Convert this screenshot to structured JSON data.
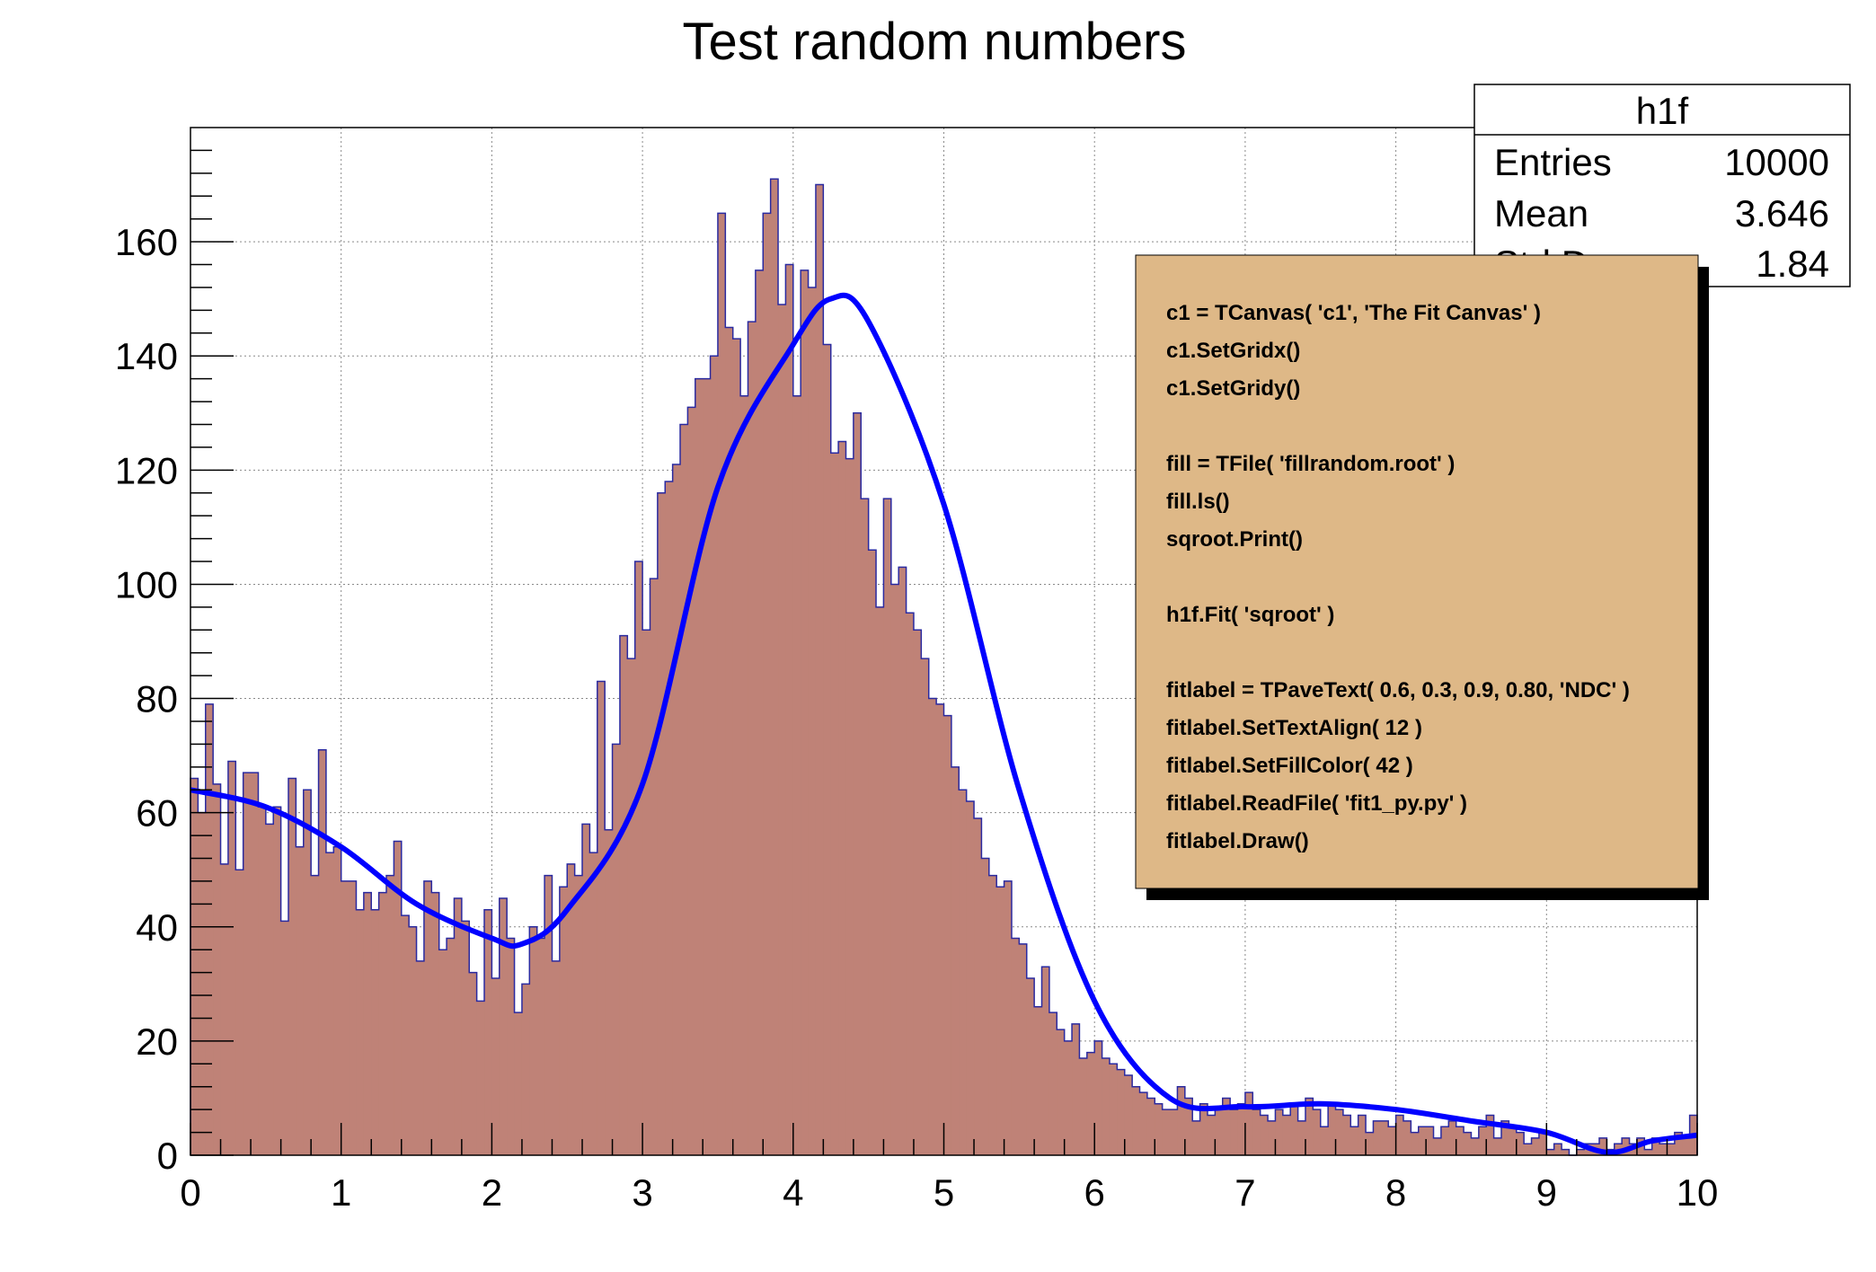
{
  "chart_data": {
    "type": "bar",
    "title": "Test random numbers",
    "xlabel": "",
    "ylabel": "",
    "xlim": [
      0,
      10
    ],
    "ylim": [
      0,
      180
    ],
    "grid": true,
    "x_ticks": [
      0,
      1,
      2,
      3,
      4,
      5,
      6,
      7,
      8,
      9,
      10
    ],
    "x_tick_labels": [
      "0",
      "1",
      "2",
      "3",
      "4",
      "5",
      "6",
      "7",
      "8",
      "9",
      "10"
    ],
    "y_ticks": [
      0,
      20,
      40,
      60,
      80,
      100,
      120,
      140,
      160
    ],
    "y_tick_labels": [
      "0",
      "20",
      "40",
      "60",
      "80",
      "100",
      "120",
      "140",
      "160"
    ],
    "bin_width": 0.05,
    "histogram_values": [
      66,
      60,
      79,
      65,
      51,
      69,
      50,
      67,
      67,
      61,
      58,
      61,
      41,
      66,
      54,
      64,
      49,
      71,
      53,
      54,
      48,
      48,
      43,
      46,
      43,
      46,
      49,
      55,
      42,
      40,
      34,
      48,
      46,
      36,
      38,
      45,
      41,
      32,
      27,
      43,
      31,
      45,
      38,
      25,
      30,
      40,
      38,
      49,
      34,
      47,
      51,
      49,
      58,
      53,
      83,
      57,
      72,
      91,
      87,
      104,
      92,
      101,
      116,
      118,
      121,
      128,
      131,
      136,
      136,
      140,
      165,
      145,
      143,
      133,
      146,
      155,
      165,
      171,
      149,
      156,
      133,
      155,
      152,
      170,
      142,
      123,
      125,
      122,
      130,
      115,
      106,
      96,
      115,
      100,
      103,
      95,
      92,
      87,
      80,
      79,
      77,
      68,
      64,
      62,
      59,
      52,
      49,
      47,
      48,
      38,
      37,
      31,
      26,
      33,
      25,
      22,
      20,
      23,
      17,
      18,
      20,
      17,
      16,
      15,
      14,
      12,
      11,
      10,
      9,
      8,
      8,
      12,
      10,
      6,
      9,
      7,
      8,
      10,
      8,
      9,
      11,
      8,
      7,
      6,
      8,
      7,
      9,
      6,
      10,
      8,
      5,
      9,
      8,
      7,
      5,
      7,
      4,
      6,
      6,
      5,
      7,
      6,
      4,
      5,
      5,
      3,
      5,
      6,
      5,
      4,
      3,
      5,
      7,
      3,
      6,
      5,
      4,
      2,
      3,
      4,
      1,
      2,
      1,
      0,
      1,
      2,
      2,
      3,
      1,
      2,
      3,
      2,
      3,
      1,
      3,
      2,
      2,
      4,
      3,
      7
    ],
    "fit_function": {
      "name": "sqroot",
      "color": "#0000ff",
      "x": [
        0,
        0.5,
        1,
        1.5,
        2,
        2.2,
        2.5,
        3,
        3.5,
        4,
        4.25,
        4.5,
        5,
        5.5,
        6,
        6.5,
        7,
        7.5,
        8,
        8.5,
        9,
        9.4,
        9.7,
        10
      ],
      "y": [
        64,
        61,
        54,
        44,
        38,
        37,
        43,
        65,
        117,
        142,
        150,
        146,
        114,
        64,
        27,
        10,
        8.5,
        9,
        8,
        6,
        4,
        0.5,
        2.5,
        3.5
      ]
    },
    "bar_fill_color": "#bf8277",
    "bar_line_color": "#2a2aa0",
    "stats_box": {
      "title": "h1f",
      "rows": [
        {
          "label": "Entries",
          "value": "10000"
        },
        {
          "label": "Mean",
          "value": "3.646"
        },
        {
          "label": "Std Dev",
          "value": "1.84"
        }
      ]
    },
    "pavetext": {
      "fill_color": "#deb887",
      "lines": [
        "c1 = TCanvas( 'c1', 'The Fit Canvas' )",
        "c1.SetGridx()",
        "c1.SetGridy()",
        "",
        "fill = TFile( 'fillrandom.root' )",
        "fill.ls()",
        "sqroot.Print()",
        "",
        "h1f.Fit( 'sqroot' )",
        "",
        "fitlabel = TPaveText( 0.6, 0.3, 0.9, 0.80, 'NDC' )",
        "fitlabel.SetTextAlign( 12 )",
        "fitlabel.SetFillColor( 42 )",
        "fitlabel.ReadFile( 'fit1_py.py' )",
        "fitlabel.Draw()"
      ]
    }
  }
}
